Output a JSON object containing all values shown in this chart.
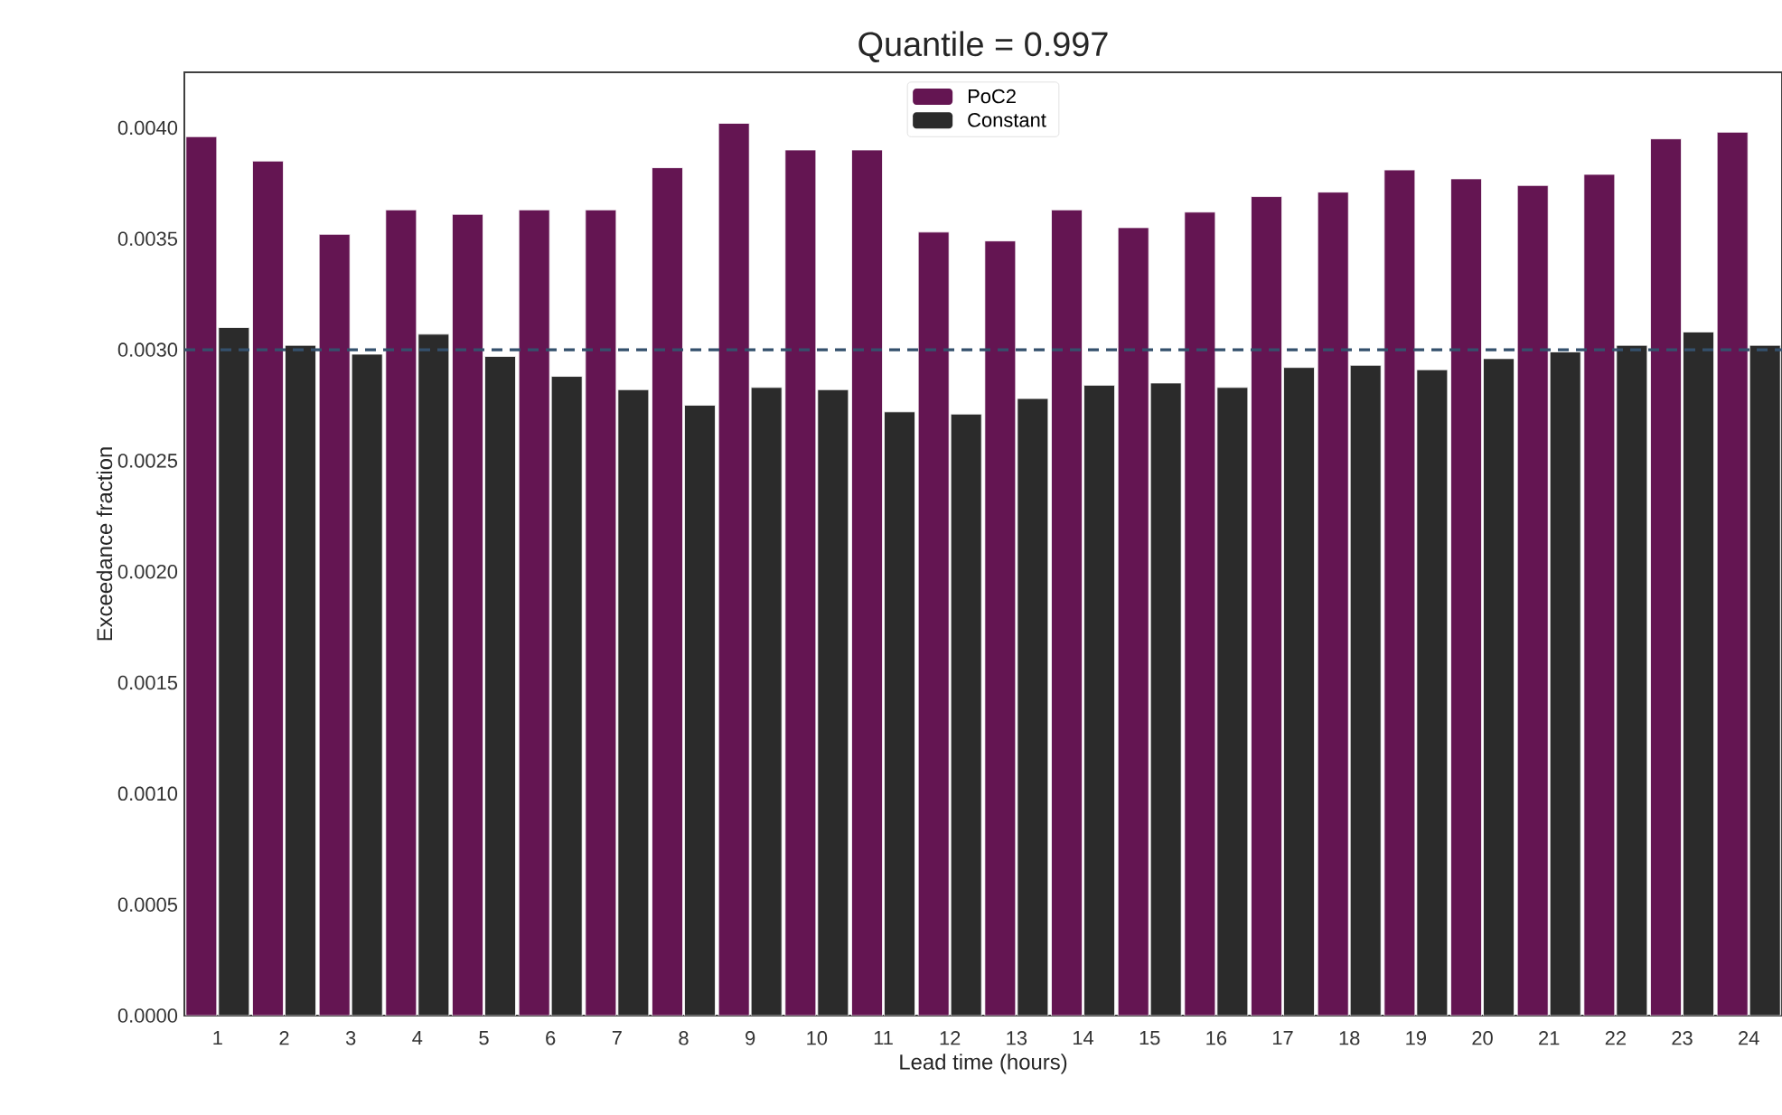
{
  "chart_data": {
    "type": "bar",
    "title": "Quantile = 0.997",
    "xlabel": "Lead time (hours)",
    "ylabel": "Exceedance fraction",
    "categories": [
      "1",
      "2",
      "3",
      "4",
      "5",
      "6",
      "7",
      "8",
      "9",
      "10",
      "11",
      "12",
      "13",
      "14",
      "15",
      "16",
      "17",
      "18",
      "19",
      "20",
      "21",
      "22",
      "23",
      "24"
    ],
    "series": [
      {
        "name": "PoC2",
        "color": "#641552",
        "values": [
          0.00396,
          0.00385,
          0.00352,
          0.00363,
          0.00361,
          0.00363,
          0.00363,
          0.00382,
          0.00402,
          0.0039,
          0.0039,
          0.00353,
          0.00349,
          0.00363,
          0.00355,
          0.00362,
          0.00369,
          0.00371,
          0.00381,
          0.00377,
          0.00374,
          0.00379,
          0.00395,
          0.00398
        ]
      },
      {
        "name": "Constant",
        "color": "#2b2b2b",
        "values": [
          0.0031,
          0.00302,
          0.00298,
          0.00307,
          0.00297,
          0.00288,
          0.00282,
          0.00275,
          0.00283,
          0.00282,
          0.00272,
          0.00271,
          0.00278,
          0.00284,
          0.00285,
          0.00283,
          0.00292,
          0.00293,
          0.00291,
          0.00296,
          0.00299,
          0.00302,
          0.00308,
          0.00302
        ]
      }
    ],
    "ylim": [
      0,
      0.00425
    ],
    "yticks": [
      {
        "value": 0,
        "label": "0.0000"
      },
      {
        "value": 0.0005,
        "label": "0.0005"
      },
      {
        "value": 0.001,
        "label": "0.0010"
      },
      {
        "value": 0.0015,
        "label": "0.0015"
      },
      {
        "value": 0.002,
        "label": "0.0020"
      },
      {
        "value": 0.0025,
        "label": "0.0025"
      },
      {
        "value": 0.003,
        "label": "0.0030"
      },
      {
        "value": 0.0035,
        "label": "0.0035"
      },
      {
        "value": 0.004,
        "label": "0.0040"
      }
    ],
    "ref_lines": [
      {
        "axis": "y",
        "value": 0.003,
        "color": "#34506c",
        "line_style": "dashed"
      }
    ],
    "legend": "top"
  }
}
